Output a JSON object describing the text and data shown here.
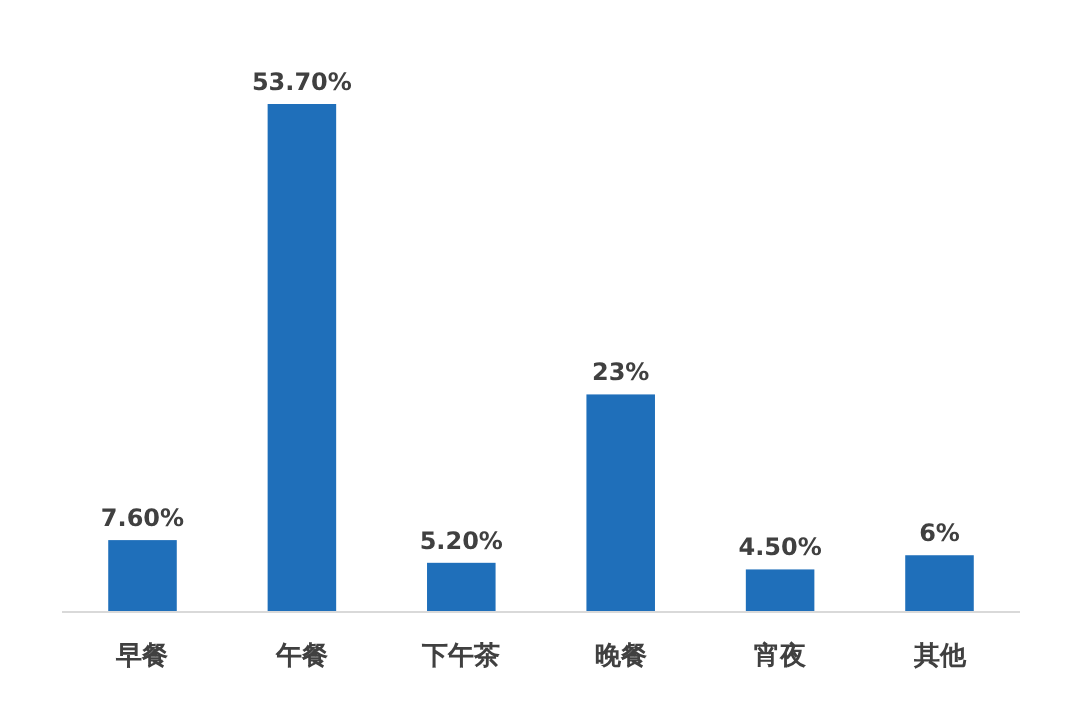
{
  "chart_data": {
    "type": "bar",
    "categories": [
      "早餐",
      "午餐",
      "下午茶",
      "晚餐",
      "宵夜",
      "其他"
    ],
    "values": [
      7.6,
      53.7,
      5.2,
      23,
      4.5,
      6
    ],
    "value_labels": [
      "7.60%",
      "53.70%",
      "5.20%",
      "23%",
      "4.50%",
      "6%"
    ],
    "color": "#1f6fba"
  }
}
